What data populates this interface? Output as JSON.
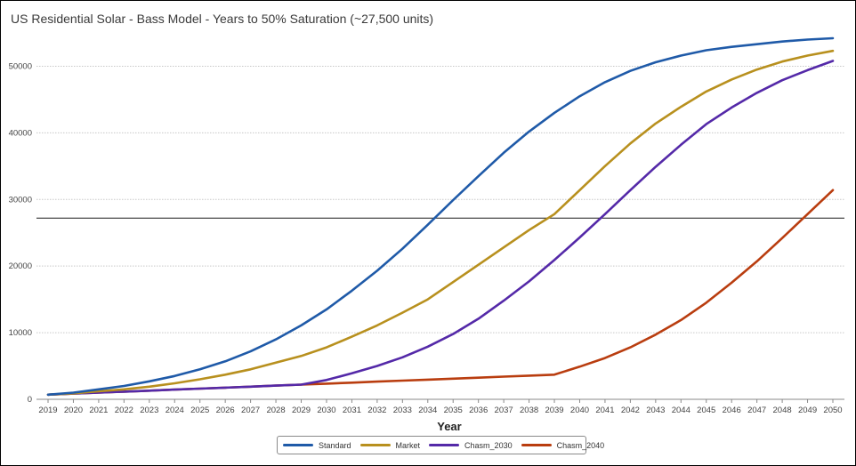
{
  "chart_data": {
    "type": "line",
    "title": "US Residential Solar - Bass Model - Years to 50% Saturation (~27,500 units)",
    "xlabel": "Year",
    "ylabel": "",
    "x": [
      2019,
      2020,
      2021,
      2022,
      2023,
      2024,
      2025,
      2026,
      2027,
      2028,
      2029,
      2030,
      2031,
      2032,
      2033,
      2034,
      2035,
      2036,
      2037,
      2038,
      2039,
      2040,
      2041,
      2042,
      2043,
      2044,
      2045,
      2046,
      2047,
      2048,
      2049,
      2050
    ],
    "ylim": [
      0,
      55000
    ],
    "yticks": [
      0,
      10000,
      20000,
      30000,
      40000,
      50000
    ],
    "grid": true,
    "reference_line": {
      "y": 27200
    },
    "legend_position": "bottom-center",
    "series": [
      {
        "name": "Standard",
        "color": "#1f5aa8",
        "values": [
          700,
          1000,
          1500,
          2000,
          2700,
          3500,
          4500,
          5700,
          7200,
          9000,
          11100,
          13500,
          16300,
          19300,
          22600,
          26200,
          29900,
          33500,
          37000,
          40200,
          43000,
          45500,
          47600,
          49300,
          50600,
          51600,
          52400,
          52900,
          53300,
          53700,
          54000,
          54200
        ]
      },
      {
        "name": "Market",
        "color": "#b8901e",
        "values": [
          700,
          900,
          1200,
          1500,
          1900,
          2400,
          3000,
          3700,
          4500,
          5500,
          6500,
          7800,
          9400,
          11100,
          13000,
          15000,
          17600,
          20200,
          22800,
          25400,
          27800,
          31400,
          35000,
          38400,
          41400,
          43900,
          46200,
          48000,
          49500,
          50700,
          51600,
          52300
        ]
      },
      {
        "name": "Chasm_2030",
        "color": "#5429a8",
        "values": [
          700,
          850,
          1000,
          1150,
          1300,
          1450,
          1600,
          1750,
          1900,
          2050,
          2200,
          2900,
          3900,
          5000,
          6300,
          7900,
          9800,
          12100,
          14800,
          17700,
          20900,
          24300,
          27800,
          31400,
          34900,
          38200,
          41300,
          43800,
          46000,
          47900,
          49400,
          50800
        ]
      },
      {
        "name": "Chasm_2040",
        "color": "#b93d0f",
        "values": [
          700,
          850,
          1000,
          1150,
          1300,
          1450,
          1600,
          1750,
          1900,
          2050,
          2200,
          2350,
          2500,
          2650,
          2800,
          2950,
          3100,
          3250,
          3400,
          3550,
          3700,
          4900,
          6200,
          7800,
          9700,
          11900,
          14500,
          17500,
          20700,
          24200,
          27800,
          31400
        ]
      }
    ]
  }
}
